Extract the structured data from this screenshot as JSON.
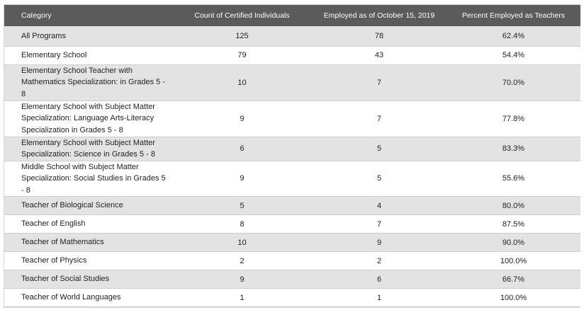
{
  "table": {
    "columns": [
      "Category",
      "Count of Certified Individuals",
      "Employed as of October 15, 2019",
      "Percent Employed as Teachers"
    ],
    "rows": [
      {
        "category": "All Programs",
        "count": "125",
        "employed": "78",
        "percent": "62.4%"
      },
      {
        "category": "Elementary School",
        "count": "79",
        "employed": "43",
        "percent": "54.4%"
      },
      {
        "category": "Elementary School Teacher with Mathematics Specialization: in Grades 5 - 8",
        "count": "10",
        "employed": "7",
        "percent": "70.0%"
      },
      {
        "category": "Elementary School with Subject Matter Specialization: Language Arts-Literacy Specialization in Grades 5 - 8",
        "count": "9",
        "employed": "7",
        "percent": "77.8%"
      },
      {
        "category": "Elementary School with Subject Matter Specialization: Science in Grades 5 - 8",
        "count": "6",
        "employed": "5",
        "percent": "83.3%"
      },
      {
        "category": "Middle School with Subject Matter Specialization: Social Studies in Grades 5 - 8",
        "count": "9",
        "employed": "5",
        "percent": "55.6%"
      },
      {
        "category": "Teacher of Biological Science",
        "count": "5",
        "employed": "4",
        "percent": "80.0%"
      },
      {
        "category": "Teacher of English",
        "count": "8",
        "employed": "7",
        "percent": "87.5%"
      },
      {
        "category": "Teacher of Mathematics",
        "count": "10",
        "employed": "9",
        "percent": "90.0%"
      },
      {
        "category": "Teacher of Physics",
        "count": "2",
        "employed": "2",
        "percent": "100.0%"
      },
      {
        "category": "Teacher of Social Studies",
        "count": "9",
        "employed": "6",
        "percent": "66.7%"
      },
      {
        "category": "Teacher of World Languages",
        "count": "1",
        "employed": "1",
        "percent": "100.0%"
      }
    ]
  }
}
